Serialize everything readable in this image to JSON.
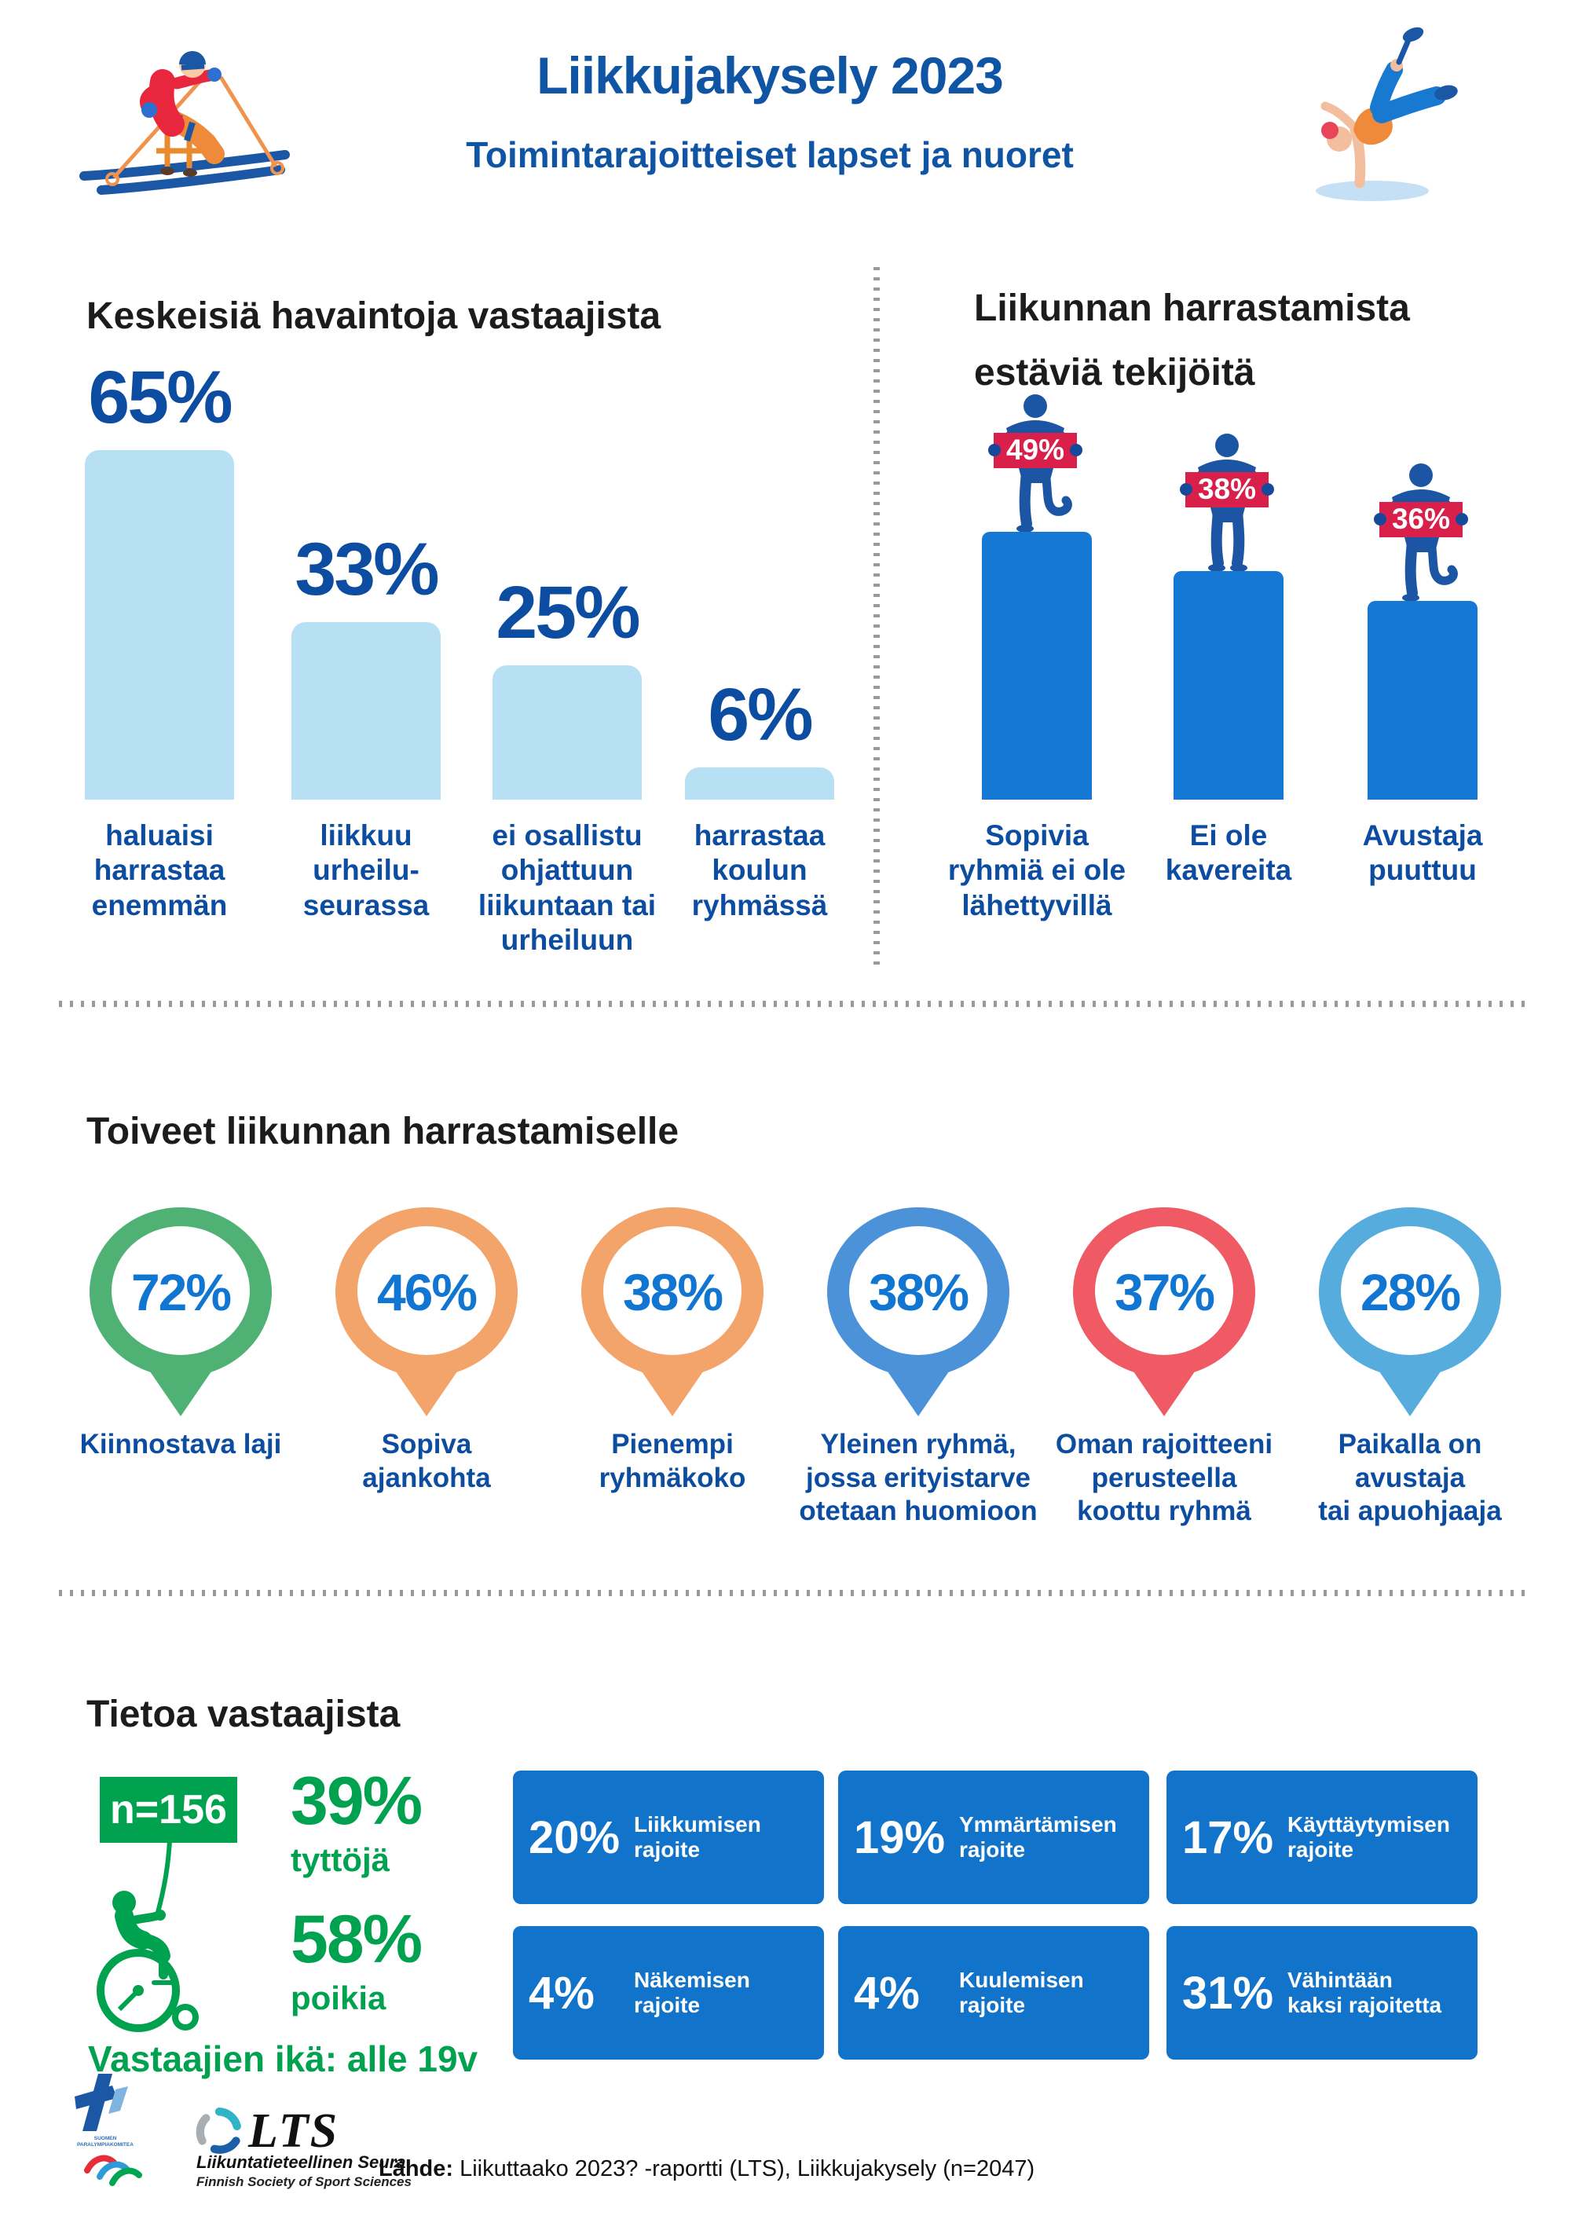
{
  "colors": {
    "brand_blue": "#0F55A4",
    "dark_blue_text": "#0C4DA2",
    "light_bar": "#B8E0F5",
    "podium_blue": "#1478D4",
    "figure_blue": "#1C55A4",
    "sign_red": "#D8204B",
    "box_blue": "#1173C9",
    "green": "#00A24F",
    "pin_value_blue": "#1176D2"
  },
  "header": {
    "title": "Liikkujakysely 2023",
    "subtitle": "Toimintarajoitteiset lapset ja nuoret"
  },
  "observations": {
    "heading": "Keskeisiä havaintoja vastaajista",
    "bars": [
      {
        "value": "65%",
        "pct": 65,
        "label": "haluaisi\nharrastaa\nenemmän"
      },
      {
        "value": "33%",
        "pct": 33,
        "label": "liikkuu\nurheilu-\nseurassa"
      },
      {
        "value": "25%",
        "pct": 25,
        "label": "ei osallistu\nohjattuun\nliikuntaan tai\nurheiluun"
      },
      {
        "value": "6%",
        "pct": 6,
        "label": "harrastaa\nkoulun\nryhmässä"
      }
    ]
  },
  "barriers": {
    "heading": "Liikunnan harrastamista\nestäviä tekijöitä",
    "items": [
      {
        "value": "49%",
        "pct": 49,
        "label": "Sopivia\nryhmiä ei ole\nlähettyvillä"
      },
      {
        "value": "38%",
        "pct": 38,
        "label": "Ei ole\nkavereita"
      },
      {
        "value": "36%",
        "pct": 36,
        "label": "Avustaja\npuuttuu"
      }
    ]
  },
  "wishes": {
    "heading": "Toiveet liikunnan harrastamiselle",
    "items": [
      {
        "value": "72%",
        "pct": 72,
        "color": "#4FB274",
        "label": "Kiinnostava laji"
      },
      {
        "value": "46%",
        "pct": 46,
        "color": "#F2A46B",
        "label": "Sopiva\najankohta"
      },
      {
        "value": "38%",
        "pct": 38,
        "color": "#F2A46B",
        "label": "Pienempi\nryhmäkoko"
      },
      {
        "value": "38%",
        "pct": 38,
        "color": "#4B92D8",
        "label": "Yleinen ryhmä,\njossa erityistarve\notetaan huomioon"
      },
      {
        "value": "37%",
        "pct": 37,
        "color": "#F05A64",
        "label": "Oman rajoitteeni\nperusteella\nkoottu ryhmä"
      },
      {
        "value": "28%",
        "pct": 28,
        "color": "#57ACDE",
        "label": "Paikalla on avustaja\ntai apuohjaaja"
      }
    ]
  },
  "respondents": {
    "heading": "Tietoa vastaajista",
    "n_label": "n=156",
    "girls_value": "39%",
    "girls_label": "tyttöjä",
    "boys_value": "58%",
    "boys_label": "poikia",
    "age_note": "Vastaajien ikä: alle 19v",
    "stats": [
      {
        "value": "20%",
        "label": "Liikkumisen\nrajoite"
      },
      {
        "value": "19%",
        "label": "Ymmärtämisen\nrajoite"
      },
      {
        "value": "17%",
        "label": "Käyttäytymisen\nrajoite"
      },
      {
        "value": "4%",
        "label": "Näkemisen\nrajoite"
      },
      {
        "value": "4%",
        "label": "Kuulemisen\nrajoite"
      },
      {
        "value": "31%",
        "label": "Vähintään\nkaksi rajoitetta"
      }
    ]
  },
  "footer": {
    "paralympic_line1": "SUOMEN",
    "paralympic_line2": "PARALYMPIAKOMITEA",
    "lts_name": "LTS",
    "lts_sub1": "Liikuntatieteellinen Seura",
    "lts_sub2": "Finnish Society of Sport Sciences",
    "source_label": "Lähde:",
    "source_text": "Liikuttaako 2023? -raportti (LTS), Liikkujakysely (n=2047)"
  },
  "chart_data": [
    {
      "type": "bar",
      "title": "Keskeisiä havaintoja vastaajista",
      "categories": [
        "haluaisi harrastaa enemmän",
        "liikkuu urheiluseurassa",
        "ei osallistu ohjattuun liikuntaan tai urheiluun",
        "harrastaa koulun ryhmässä"
      ],
      "values": [
        65,
        33,
        25,
        6
      ],
      "unit": "%",
      "ylim": [
        0,
        65
      ],
      "bar_color": "#B8E0F5",
      "grid": false
    },
    {
      "type": "bar",
      "title": "Liikunnan harrastamista estäviä tekijöitä",
      "categories": [
        "Sopivia ryhmiä ei ole lähettyvillä",
        "Ei ole kavereita",
        "Avustaja puuttuu"
      ],
      "values": [
        49,
        38,
        36
      ],
      "unit": "%",
      "bar_color": "#1478D4",
      "style": "podium bars with blue figures holding red value signs",
      "grid": false
    },
    {
      "type": "bar",
      "title": "Toiveet liikunnan harrastamiselle",
      "categories": [
        "Kiinnostava laji",
        "Sopiva ajankohta",
        "Pienempi ryhmäkoko",
        "Yleinen ryhmä, jossa erityistarve otetaan huomioon",
        "Oman rajoitteeni perusteella koottu ryhmä",
        "Paikalla on avustaja tai apuohjaaja"
      ],
      "values": [
        72,
        46,
        38,
        38,
        37,
        28
      ],
      "unit": "%",
      "style": "map-pin ring badges",
      "colors": [
        "#4FB274",
        "#F2A46B",
        "#F2A46B",
        "#4B92D8",
        "#F05A64",
        "#57ACDE"
      ],
      "grid": false
    },
    {
      "type": "table",
      "title": "Tietoa vastaajista",
      "rows": [
        [
          "n",
          "156"
        ],
        [
          "tyttöjä",
          "39%"
        ],
        [
          "poikia",
          "58%"
        ],
        [
          "Vastaajien ikä",
          "alle 19v"
        ],
        [
          "Liikkumisen rajoite",
          "20%"
        ],
        [
          "Ymmärtämisen rajoite",
          "19%"
        ],
        [
          "Käyttäytymisen rajoite",
          "17%"
        ],
        [
          "Näkemisen rajoite",
          "4%"
        ],
        [
          "Kuulemisen rajoite",
          "4%"
        ],
        [
          "Vähintään kaksi rajoitetta",
          "31%"
        ]
      ]
    }
  ]
}
